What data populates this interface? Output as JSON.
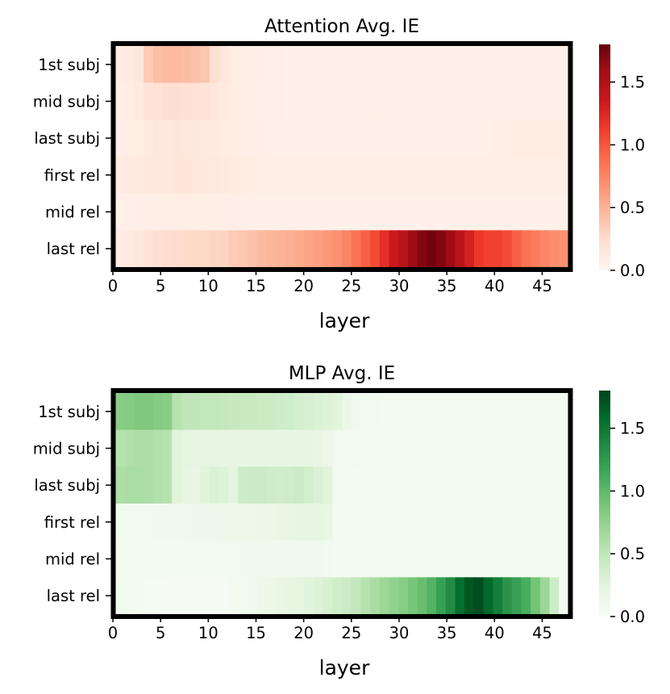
{
  "chart_data": [
    {
      "type": "heatmap",
      "title": "Attention Avg. IE",
      "xlabel": "layer",
      "ylabel": "",
      "rows": [
        "1st subj",
        "mid subj",
        "last subj",
        "first rel",
        "mid rel",
        "last rel"
      ],
      "x_ticks": [
        0,
        5,
        10,
        15,
        20,
        25,
        30,
        35,
        40,
        45
      ],
      "xlim": [
        0,
        48
      ],
      "n_layers": 48,
      "colormap": "Reds",
      "colormap_stops": [
        "#fff5f0",
        "#fee0d2",
        "#fcbba1",
        "#fc9272",
        "#fb6a4a",
        "#ef3b2c",
        "#cb181d",
        "#a50f15",
        "#67000d"
      ],
      "vmin": 0.0,
      "vmax": 1.8,
      "colorbar_ticks": [
        0.0,
        0.5,
        1.0,
        1.5
      ],
      "colorbar_tick_labels": [
        "0.0",
        "0.5",
        "1.0",
        "1.5"
      ],
      "values": [
        [
          0.1,
          0.12,
          0.15,
          0.35,
          0.42,
          0.45,
          0.45,
          0.44,
          0.42,
          0.38,
          0.22,
          0.15,
          0.1,
          0.08,
          0.07,
          0.07,
          0.06,
          0.06,
          0.05,
          0.05,
          0.05,
          0.05,
          0.05,
          0.05,
          0.05,
          0.05,
          0.05,
          0.05,
          0.05,
          0.05,
          0.05,
          0.05,
          0.05,
          0.05,
          0.05,
          0.05,
          0.05,
          0.05,
          0.05,
          0.05,
          0.05,
          0.05,
          0.05,
          0.05,
          0.05,
          0.05,
          0.05,
          0.05
        ],
        [
          0.08,
          0.1,
          0.12,
          0.18,
          0.2,
          0.22,
          0.22,
          0.21,
          0.2,
          0.18,
          0.15,
          0.12,
          0.1,
          0.08,
          0.07,
          0.06,
          0.06,
          0.06,
          0.05,
          0.05,
          0.05,
          0.05,
          0.05,
          0.05,
          0.05,
          0.05,
          0.05,
          0.05,
          0.05,
          0.05,
          0.05,
          0.05,
          0.05,
          0.05,
          0.05,
          0.05,
          0.05,
          0.05,
          0.05,
          0.05,
          0.05,
          0.05,
          0.05,
          0.05,
          0.05,
          0.05,
          0.05,
          0.05
        ],
        [
          0.06,
          0.08,
          0.1,
          0.12,
          0.14,
          0.15,
          0.16,
          0.15,
          0.14,
          0.13,
          0.12,
          0.1,
          0.09,
          0.08,
          0.07,
          0.07,
          0.06,
          0.06,
          0.06,
          0.06,
          0.06,
          0.06,
          0.06,
          0.06,
          0.06,
          0.06,
          0.06,
          0.06,
          0.06,
          0.06,
          0.06,
          0.06,
          0.06,
          0.06,
          0.06,
          0.06,
          0.06,
          0.06,
          0.06,
          0.06,
          0.08,
          0.08,
          0.09,
          0.09,
          0.1,
          0.1,
          0.1,
          0.1
        ],
        [
          0.1,
          0.12,
          0.13,
          0.14,
          0.15,
          0.15,
          0.16,
          0.16,
          0.15,
          0.14,
          0.13,
          0.12,
          0.11,
          0.1,
          0.09,
          0.08,
          0.08,
          0.08,
          0.08,
          0.08,
          0.08,
          0.08,
          0.08,
          0.08,
          0.08,
          0.08,
          0.08,
          0.08,
          0.08,
          0.08,
          0.08,
          0.08,
          0.08,
          0.08,
          0.08,
          0.08,
          0.08,
          0.08,
          0.08,
          0.08,
          0.08,
          0.08,
          0.08,
          0.08,
          0.08,
          0.08,
          0.08,
          0.08
        ],
        [
          0.05,
          0.06,
          0.07,
          0.07,
          0.08,
          0.08,
          0.08,
          0.08,
          0.08,
          0.08,
          0.08,
          0.07,
          0.07,
          0.06,
          0.05,
          0.05,
          0.05,
          0.05,
          0.05,
          0.05,
          0.05,
          0.05,
          0.05,
          0.05,
          0.05,
          0.05,
          0.05,
          0.05,
          0.05,
          0.05,
          0.05,
          0.05,
          0.05,
          0.05,
          0.05,
          0.05,
          0.05,
          0.05,
          0.05,
          0.05,
          0.05,
          0.05,
          0.05,
          0.05,
          0.05,
          0.05,
          0.05,
          0.05
        ],
        [
          0.1,
          0.12,
          0.15,
          0.2,
          0.22,
          0.24,
          0.25,
          0.26,
          0.27,
          0.28,
          0.29,
          0.3,
          0.35,
          0.38,
          0.42,
          0.45,
          0.48,
          0.5,
          0.52,
          0.55,
          0.58,
          0.6,
          0.64,
          0.68,
          0.75,
          0.85,
          0.95,
          1.05,
          1.2,
          1.35,
          1.45,
          1.6,
          1.7,
          1.75,
          1.7,
          1.6,
          1.45,
          1.3,
          1.15,
          1.1,
          1.1,
          1.05,
          0.95,
          0.85,
          0.8,
          0.75,
          0.7,
          0.68
        ]
      ]
    },
    {
      "type": "heatmap",
      "title": "MLP Avg. IE",
      "xlabel": "layer",
      "ylabel": "",
      "rows": [
        "1st subj",
        "mid subj",
        "last subj",
        "first rel",
        "mid rel",
        "last rel"
      ],
      "x_ticks": [
        0,
        5,
        10,
        15,
        20,
        25,
        30,
        35,
        40,
        45
      ],
      "xlim": [
        0,
        48
      ],
      "n_layers": 48,
      "colormap": "Greens",
      "colormap_stops": [
        "#f7fcf5",
        "#e5f5e0",
        "#c7e9c0",
        "#a1d99b",
        "#74c476",
        "#41ab5d",
        "#238b45",
        "#006d2c",
        "#00441b"
      ],
      "vmin": 0.0,
      "vmax": 1.8,
      "colorbar_ticks": [
        0.0,
        0.5,
        1.0,
        1.5
      ],
      "colorbar_tick_labels": [
        "0.0",
        "0.5",
        "1.0",
        "1.5"
      ],
      "values": [
        [
          0.8,
          0.82,
          0.85,
          0.85,
          0.82,
          0.8,
          0.55,
          0.5,
          0.5,
          0.48,
          0.48,
          0.46,
          0.45,
          0.44,
          0.44,
          0.42,
          0.42,
          0.4,
          0.38,
          0.35,
          0.32,
          0.3,
          0.28,
          0.25,
          0.15,
          0.1,
          0.08,
          0.06,
          0.05,
          0.05,
          0.05,
          0.05,
          0.05,
          0.05,
          0.05,
          0.05,
          0.05,
          0.05,
          0.05,
          0.05,
          0.05,
          0.05,
          0.05,
          0.05,
          0.05,
          0.05,
          0.05,
          0.05
        ],
        [
          0.55,
          0.58,
          0.6,
          0.6,
          0.58,
          0.55,
          0.25,
          0.22,
          0.2,
          0.2,
          0.2,
          0.2,
          0.2,
          0.2,
          0.2,
          0.2,
          0.2,
          0.2,
          0.2,
          0.2,
          0.2,
          0.18,
          0.15,
          0.08,
          0.07,
          0.06,
          0.05,
          0.05,
          0.05,
          0.05,
          0.05,
          0.05,
          0.05,
          0.05,
          0.05,
          0.05,
          0.05,
          0.05,
          0.05,
          0.05,
          0.05,
          0.05,
          0.05,
          0.05,
          0.05,
          0.05,
          0.05,
          0.05
        ],
        [
          0.6,
          0.62,
          0.62,
          0.6,
          0.58,
          0.55,
          0.25,
          0.2,
          0.18,
          0.25,
          0.3,
          0.28,
          0.22,
          0.4,
          0.42,
          0.42,
          0.4,
          0.38,
          0.4,
          0.42,
          0.35,
          0.3,
          0.25,
          0.08,
          0.06,
          0.05,
          0.05,
          0.05,
          0.05,
          0.05,
          0.05,
          0.05,
          0.05,
          0.05,
          0.05,
          0.05,
          0.05,
          0.05,
          0.05,
          0.05,
          0.05,
          0.05,
          0.05,
          0.05,
          0.05,
          0.05,
          0.05,
          0.05
        ],
        [
          0.08,
          0.08,
          0.08,
          0.08,
          0.09,
          0.09,
          0.1,
          0.1,
          0.11,
          0.11,
          0.12,
          0.12,
          0.13,
          0.13,
          0.14,
          0.15,
          0.16,
          0.18,
          0.18,
          0.2,
          0.2,
          0.2,
          0.18,
          0.05,
          0.05,
          0.05,
          0.05,
          0.05,
          0.05,
          0.05,
          0.05,
          0.05,
          0.05,
          0.05,
          0.05,
          0.05,
          0.05,
          0.05,
          0.05,
          0.05,
          0.05,
          0.05,
          0.05,
          0.05,
          0.05,
          0.05,
          0.05,
          0.05
        ],
        [
          0.06,
          0.06,
          0.06,
          0.06,
          0.06,
          0.06,
          0.07,
          0.07,
          0.07,
          0.08,
          0.08,
          0.08,
          0.08,
          0.09,
          0.09,
          0.1,
          0.1,
          0.1,
          0.1,
          0.1,
          0.1,
          0.1,
          0.08,
          0.05,
          0.05,
          0.05,
          0.05,
          0.05,
          0.05,
          0.05,
          0.05,
          0.05,
          0.05,
          0.05,
          0.05,
          0.05,
          0.05,
          0.05,
          0.05,
          0.05,
          0.05,
          0.05,
          0.05,
          0.05,
          0.05,
          0.05,
          0.05,
          0.05
        ],
        [
          0.08,
          0.06,
          0.05,
          0.04,
          0.04,
          0.03,
          0.03,
          0.03,
          0.03,
          0.03,
          0.03,
          0.03,
          0.05,
          0.07,
          0.09,
          0.12,
          0.15,
          0.18,
          0.2,
          0.22,
          0.25,
          0.28,
          0.32,
          0.38,
          0.42,
          0.48,
          0.55,
          0.62,
          0.7,
          0.75,
          0.8,
          0.88,
          0.95,
          1.05,
          1.2,
          1.35,
          1.55,
          1.7,
          1.75,
          1.6,
          1.45,
          1.3,
          1.2,
          1.1,
          0.9,
          0.7,
          0.4,
          0.05
        ]
      ]
    }
  ]
}
